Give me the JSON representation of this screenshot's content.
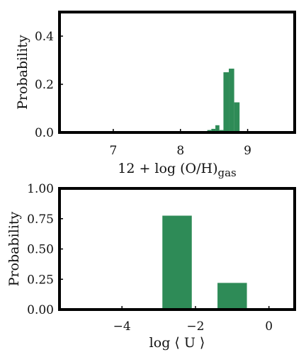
{
  "colors": {
    "bar": "#2e8b57",
    "frame": "#000000"
  },
  "chart_data": [
    {
      "type": "bar",
      "xlabel": "12 + log (O/H)",
      "xlabel_subscript": "gas",
      "ylabel": "Probability",
      "xlim": [
        6.2,
        9.7
      ],
      "ylim": [
        0.0,
        0.5
      ],
      "xticks": [
        7,
        8,
        9
      ],
      "xtick_labels": [
        "7",
        "8",
        "9"
      ],
      "yticks": [
        0.0,
        0.2,
        0.4
      ],
      "ytick_labels": [
        "0.0",
        "0.2",
        "0.4"
      ],
      "bins": [
        {
          "x0": 8.4,
          "x1": 8.46,
          "value": 0.01
        },
        {
          "x0": 8.46,
          "x1": 8.52,
          "value": 0.015
        },
        {
          "x0": 8.52,
          "x1": 8.58,
          "value": 0.03
        },
        {
          "x0": 8.58,
          "x1": 8.64,
          "value": 0.01
        },
        {
          "x0": 8.64,
          "x1": 8.72,
          "value": 0.25
        },
        {
          "x0": 8.72,
          "x1": 8.8,
          "value": 0.265
        },
        {
          "x0": 8.8,
          "x1": 8.88,
          "value": 0.125
        }
      ]
    },
    {
      "type": "bar",
      "xlabel": "log ⟨ U ⟩",
      "ylabel": "Probability",
      "xlim": [
        -5.7,
        0.7
      ],
      "ylim": [
        0.0,
        1.0
      ],
      "xticks": [
        -4,
        -2,
        0
      ],
      "xtick_labels": [
        "−4",
        "−2",
        "0"
      ],
      "yticks": [
        0.0,
        0.25,
        0.5,
        0.75,
        1.0
      ],
      "ytick_labels": [
        "0.00",
        "0.25",
        "0.50",
        "0.75",
        "1.00"
      ],
      "bins": [
        {
          "x0": -2.9,
          "x1": -2.1,
          "value": 0.775
        },
        {
          "x0": -1.4,
          "x1": -0.6,
          "value": 0.22
        }
      ]
    }
  ]
}
